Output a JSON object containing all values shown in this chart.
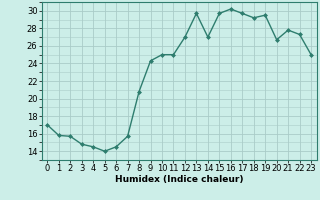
{
  "x": [
    0,
    1,
    2,
    3,
    4,
    5,
    6,
    7,
    8,
    9,
    10,
    11,
    12,
    13,
    14,
    15,
    16,
    17,
    18,
    19,
    20,
    21,
    22,
    23
  ],
  "y": [
    17.0,
    15.8,
    15.7,
    14.8,
    14.5,
    14.0,
    14.5,
    15.7,
    20.8,
    24.3,
    25.0,
    25.0,
    27.0,
    29.7,
    27.0,
    29.7,
    30.2,
    29.7,
    29.2,
    29.5,
    26.7,
    27.8,
    27.3,
    25.0
  ],
  "line_color": "#2e7d6e",
  "marker": "D",
  "marker_size": 2.0,
  "bg_color": "#cceee8",
  "grid_color": "#aaccc8",
  "xlabel": "Humidex (Indice chaleur)",
  "ylim": [
    13,
    31
  ],
  "xlim": [
    -0.5,
    23.5
  ],
  "yticks": [
    14,
    16,
    18,
    20,
    22,
    24,
    26,
    28,
    30
  ],
  "xticks": [
    0,
    1,
    2,
    3,
    4,
    5,
    6,
    7,
    8,
    9,
    10,
    11,
    12,
    13,
    14,
    15,
    16,
    17,
    18,
    19,
    20,
    21,
    22,
    23
  ],
  "xlabel_fontsize": 6.5,
  "tick_fontsize": 6.0,
  "line_width": 1.0
}
